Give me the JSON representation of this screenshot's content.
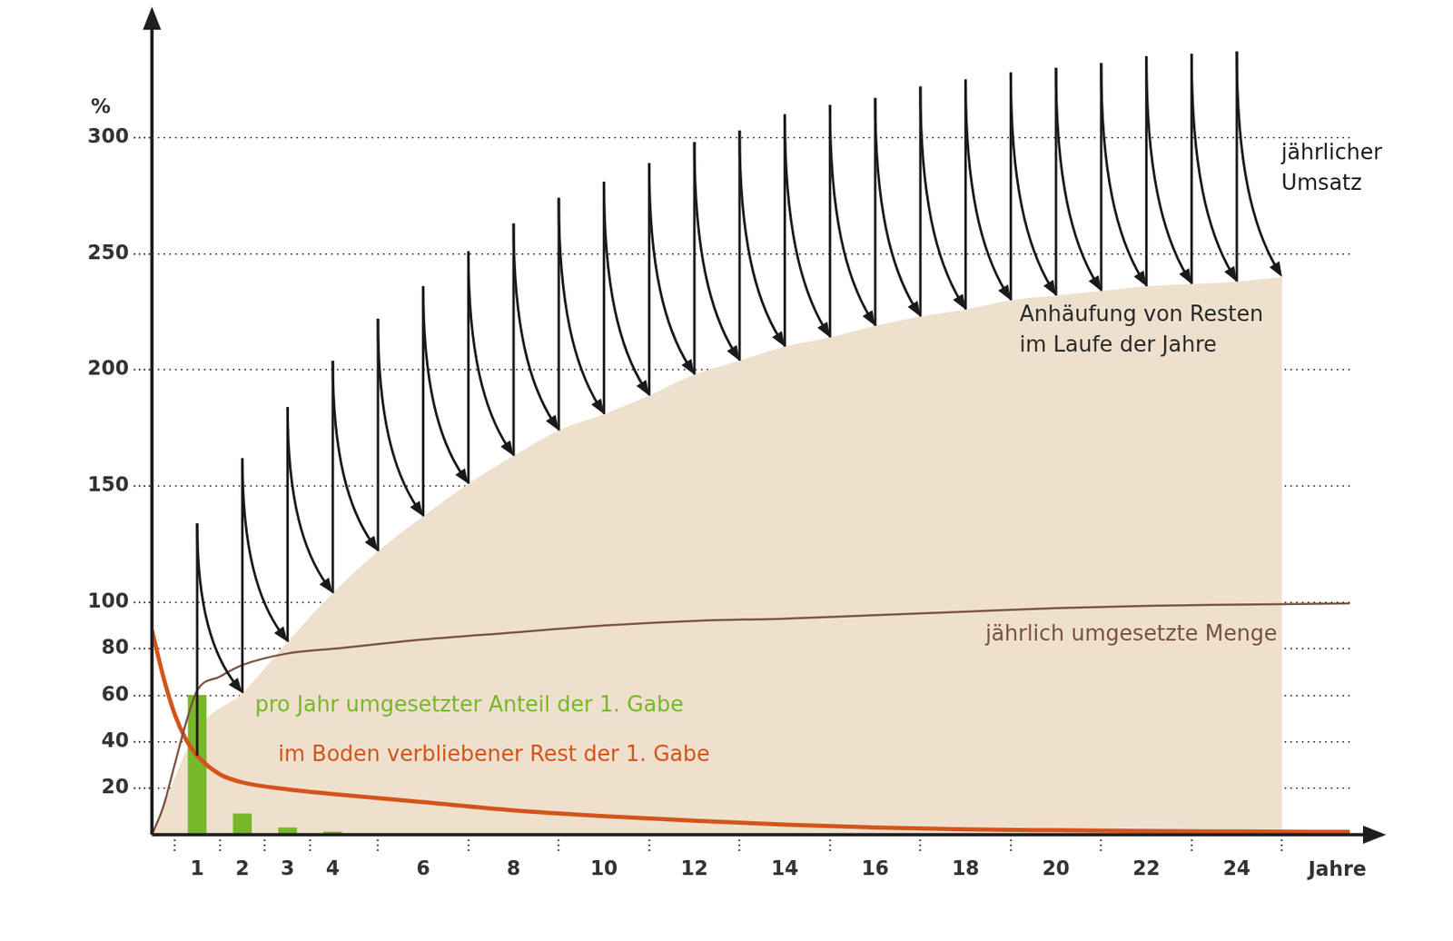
{
  "chart_data": {
    "type": "line",
    "y_label": "%",
    "x_label": "Jahre",
    "xlim": [
      0,
      26.5
    ],
    "xticks": [
      1,
      2,
      3,
      4,
      6,
      8,
      10,
      12,
      14,
      16,
      18,
      20,
      22,
      24
    ],
    "ylim": [
      0,
      345
    ],
    "yticks": [
      20,
      40,
      60,
      80,
      100,
      150,
      200,
      250,
      300
    ],
    "grid": true,
    "series": [
      {
        "name": "Anhäufung von Resten\nim Laufe der Jahre",
        "type": "area",
        "color": "#eee0cd",
        "x": [
          0,
          1,
          2,
          3,
          4,
          5,
          6,
          7,
          8,
          9,
          10,
          11,
          12,
          13,
          14,
          15,
          16,
          17,
          18,
          19,
          20,
          21,
          22,
          23,
          24,
          25
        ],
        "values": [
          0,
          45,
          61,
          83,
          104,
          122,
          137,
          151,
          163,
          174,
          181,
          189,
          198,
          204,
          210,
          214,
          219,
          223,
          226,
          230,
          232,
          234,
          236,
          237,
          238,
          240
        ]
      },
      {
        "name": "jährlicher\nUmsatz",
        "type": "sawtooth",
        "color": "#1a1a1a",
        "x": [
          1,
          2,
          3,
          4,
          5,
          6,
          7,
          8,
          9,
          10,
          11,
          12,
          13,
          14,
          15,
          16,
          17,
          18,
          19,
          20,
          21,
          22,
          23,
          24,
          25
        ],
        "values": [
          134,
          162,
          184,
          204,
          222,
          236,
          251,
          263,
          274,
          281,
          289,
          298,
          303,
          310,
          314,
          317,
          322,
          325,
          328,
          330,
          332,
          335,
          336,
          337,
          null
        ],
        "low": [
          34,
          61,
          83,
          104,
          122,
          137,
          151,
          163,
          174,
          181,
          189,
          198,
          204,
          210,
          214,
          219,
          223,
          226,
          230,
          232,
          234,
          236,
          237,
          238,
          240
        ]
      },
      {
        "name": "jährlich umgesetzte Menge",
        "type": "line",
        "color": "#7a5243",
        "x": [
          0,
          0.25,
          0.5,
          0.75,
          1,
          1.5,
          2,
          3,
          4,
          6,
          8,
          10,
          12,
          14,
          16,
          18,
          20,
          22,
          24,
          26.5
        ],
        "values": [
          0,
          12,
          30,
          48,
          62,
          68,
          73,
          78,
          80,
          84,
          87,
          90,
          92,
          93,
          94.5,
          96,
          97.5,
          98.5,
          99,
          99.5
        ]
      },
      {
        "name": "im Boden verbliebener Rest der 1. Gabe",
        "type": "line",
        "color": "#d4541c",
        "x": [
          0,
          0.25,
          0.5,
          0.75,
          1,
          1.5,
          2,
          3,
          4,
          6,
          8,
          10,
          12,
          14,
          16,
          18,
          20,
          22,
          24,
          26.5
        ],
        "values": [
          88,
          68,
          52,
          41,
          34,
          26,
          22.5,
          19.5,
          17.5,
          14,
          10.5,
          8,
          6,
          4.3,
          3.1,
          2.3,
          1.9,
          1.6,
          1.4,
          1.2
        ]
      },
      {
        "name": "pro Jahr umgesetzter Anteil der 1. Gabe",
        "type": "bar",
        "color": "#76b82a",
        "x": [
          1,
          2,
          3,
          4
        ],
        "values": [
          60,
          9,
          3,
          1.2
        ]
      }
    ]
  }
}
